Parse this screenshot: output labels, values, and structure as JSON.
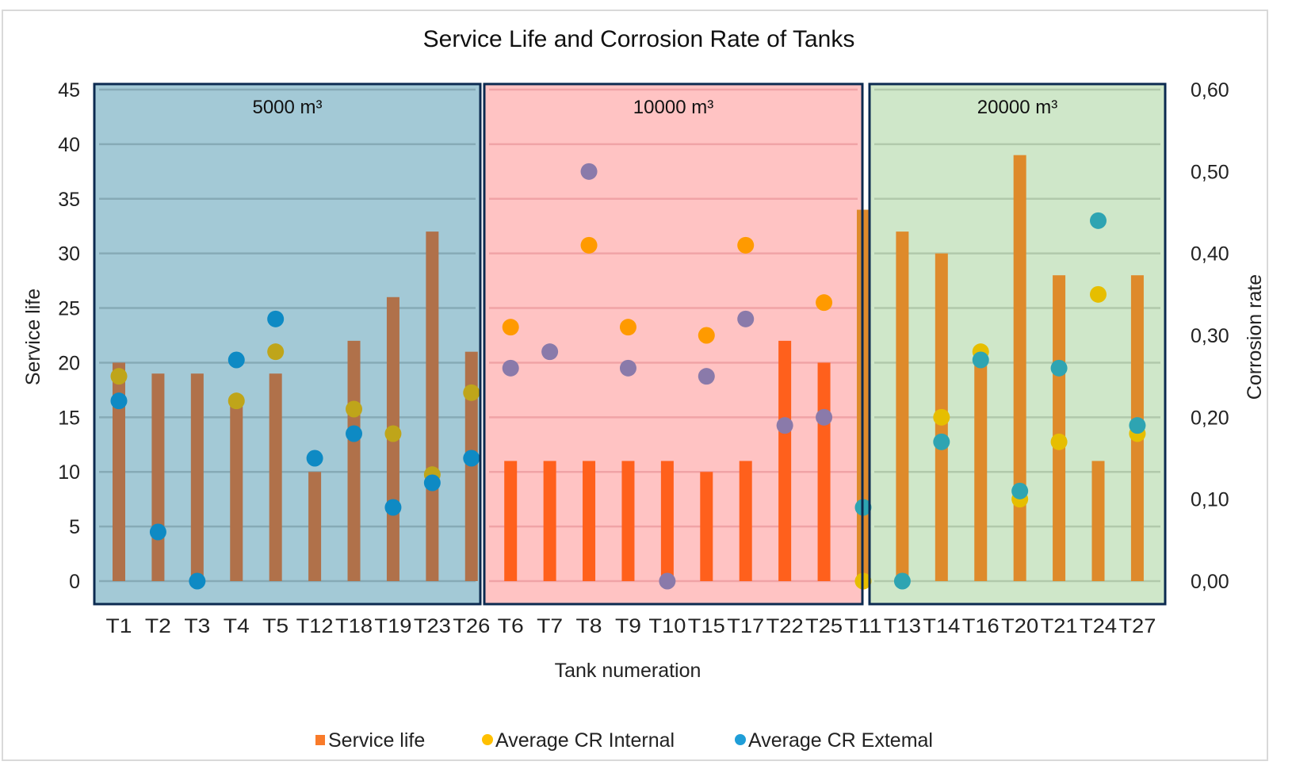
{
  "chart_data": {
    "type": "bar",
    "title": "Service Life and Corrosion Rate of Tanks",
    "xlabel": "Tank numeration",
    "ylabel": "Service life",
    "y2label": "Corrosion rate",
    "ylim": [
      0,
      45
    ],
    "y2lim": [
      0,
      0.6
    ],
    "yticks": [
      0,
      5,
      10,
      15,
      20,
      25,
      30,
      35,
      40,
      45
    ],
    "y2ticks": [
      "0,00",
      "0,10",
      "0,20",
      "0,30",
      "0,40",
      "0,50",
      "0,60"
    ],
    "y2tick_values": [
      0,
      0.1,
      0.2,
      0.3,
      0.4,
      0.5,
      0.6
    ],
    "grid": true,
    "legend_position": "bottom",
    "categories": [
      "T1",
      "T2",
      "T3",
      "T4",
      "T5",
      "T12",
      "T18",
      "T19",
      "T23",
      "T26",
      "T6",
      "T7",
      "T8",
      "T9",
      "T10",
      "T15",
      "T17",
      "T22",
      "T25",
      "T11",
      "T13",
      "T14",
      "T16",
      "T20",
      "T21",
      "T24",
      "T27"
    ],
    "regions": [
      {
        "label": "5000 m³",
        "from": "T1",
        "to": "T26",
        "fill": "#a3c9d6",
        "grid": "#86aab6",
        "bar_color": "#b0714a",
        "internal_color": "#bfa51a",
        "external_color": "#0e8ac4"
      },
      {
        "label": "10000 m³",
        "from": "T6",
        "to": "T25",
        "fill": "#ffc3c3",
        "grid": "#f0a3a6",
        "bar_color": "#ff601c",
        "internal_color": "#ff9a00",
        "external_color": "#8a7aaa"
      },
      {
        "label": "20000 m³",
        "from": "T11",
        "to": "T27",
        "fill": "#cfe7c9",
        "grid": "#b1c9ab",
        "bar_color": "#de8a2b",
        "internal_color": "#e6be00",
        "external_color": "#2ea4b2"
      }
    ],
    "series": [
      {
        "name": "Service life",
        "axis": "left",
        "kind": "bar",
        "legend_color": "#f97b2a",
        "values": [
          20,
          19,
          19,
          16,
          19,
          10,
          22,
          26,
          32,
          21,
          11,
          11,
          11,
          11,
          11,
          10,
          11,
          22,
          20,
          34,
          32,
          30,
          20,
          39,
          28,
          11,
          28
        ]
      },
      {
        "name": "Average CR Internal",
        "axis": "right",
        "kind": "scatter",
        "legend_color": "#ffc000",
        "values": [
          0.25,
          null,
          null,
          0.22,
          0.28,
          null,
          0.21,
          0.18,
          0.13,
          0.23,
          0.31,
          null,
          0.41,
          0.31,
          null,
          0.3,
          0.41,
          null,
          0.34,
          0.0,
          null,
          0.2,
          0.28,
          0.1,
          0.17,
          0.35,
          0.18
        ]
      },
      {
        "name": "Average CR Extemal",
        "axis": "right",
        "kind": "scatter",
        "legend_color": "#1f9ed8",
        "values": [
          0.22,
          0.06,
          0.0,
          0.27,
          0.32,
          0.15,
          0.18,
          0.09,
          0.12,
          0.15,
          0.26,
          0.28,
          0.5,
          0.26,
          0.0,
          0.25,
          0.32,
          0.19,
          0.2,
          0.09,
          0.0,
          0.17,
          0.27,
          0.11,
          0.26,
          0.44,
          0.19
        ]
      }
    ]
  }
}
